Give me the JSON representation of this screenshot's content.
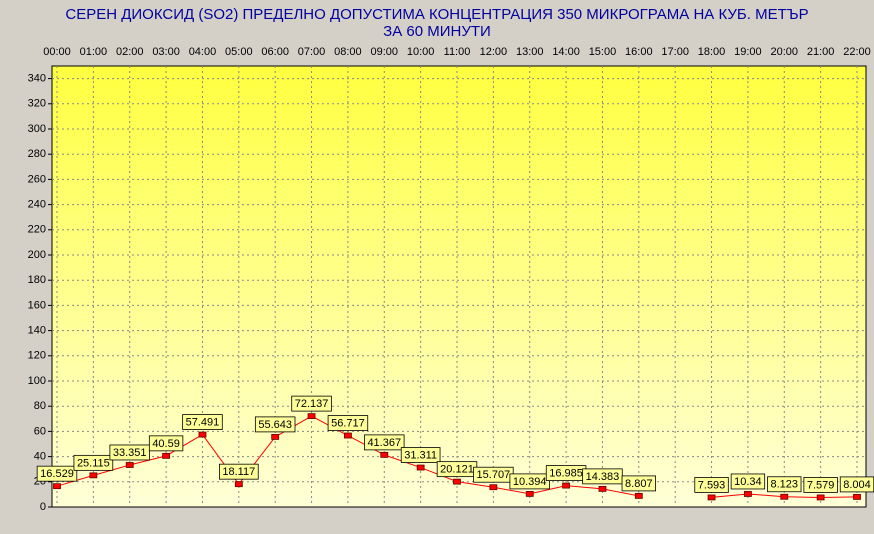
{
  "chart_data": {
    "type": "line",
    "title": [
      "СЕРЕН ДИОКСИД  (SO2)  ПРЕДЕЛНО ДОПУСТИМА КОНЦЕНТРАЦИЯ 350 МИКРОГРАМА  НА КУБ. МЕТЪР",
      "ЗА 60 МИНУТИ"
    ],
    "categories": [
      "00:00",
      "01:00",
      "02:00",
      "03:00",
      "04:00",
      "05:00",
      "06:00",
      "07:00",
      "08:00",
      "09:00",
      "10:00",
      "11:00",
      "12:00",
      "13:00",
      "14:00",
      "15:00",
      "16:00",
      "17:00",
      "18:00",
      "19:00",
      "20:00",
      "21:00",
      "22:00"
    ],
    "values": [
      16.529,
      25.115,
      33.351,
      40.59,
      57.491,
      18.117,
      55.643,
      72.137,
      56.717,
      41.367,
      31.311,
      20.121,
      15.707,
      10.394,
      16.985,
      14.383,
      8.807,
      null,
      7.593,
      10.34,
      8.123,
      7.579,
      8.004
    ],
    "color": "#ff0000",
    "ylim": [
      0,
      350
    ],
    "yticks": [
      0,
      20,
      40,
      60,
      80,
      100,
      120,
      140,
      160,
      180,
      200,
      220,
      240,
      260,
      280,
      300,
      320,
      340
    ],
    "grid": true
  }
}
